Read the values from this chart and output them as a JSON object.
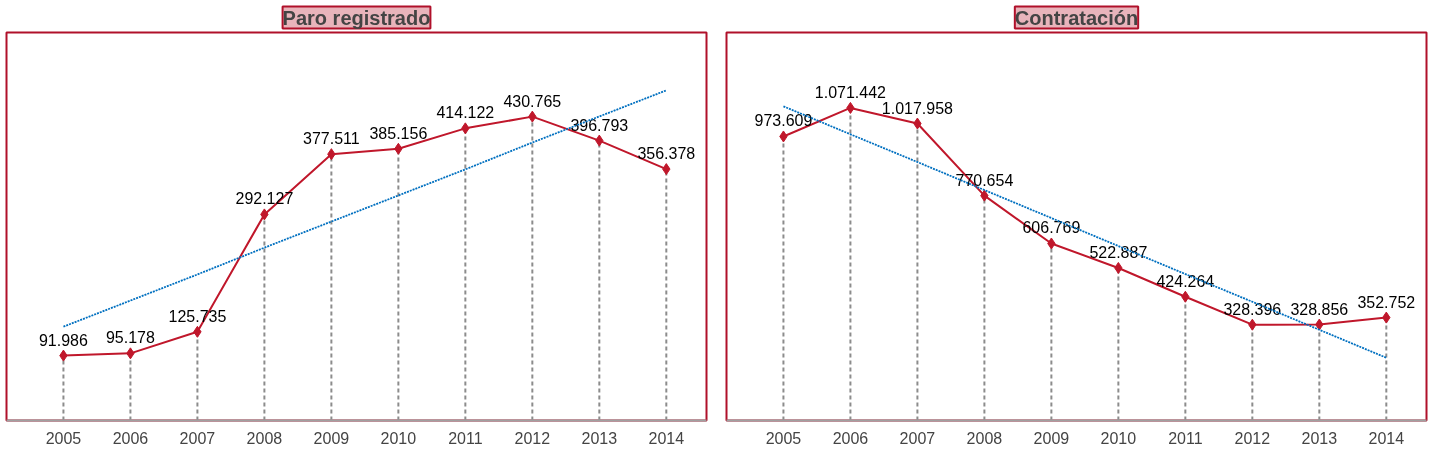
{
  "chart_data": [
    {
      "type": "line",
      "title": "Paro registrado",
      "categories": [
        "2005",
        "2006",
        "2007",
        "2008",
        "2009",
        "2010",
        "2011",
        "2012",
        "2013",
        "2014"
      ],
      "ylim": [
        0,
        550000
      ],
      "grid": "x",
      "tick_labels": "x",
      "series": [
        {
          "color": "#c0172b",
          "marker": "diamond",
          "line_style": "solid",
          "values": [
            91986,
            95178,
            125735,
            292127,
            377511,
            385156,
            414122,
            430765,
            396793,
            356378
          ],
          "value_labels": [
            "91.986",
            "95.178",
            "125.735",
            "292.127",
            "377.511",
            "385.156",
            "414.122",
            "430.765",
            "396.793",
            "356.378"
          ]
        },
        {
          "color": "#0070c0",
          "marker": "none",
          "line_style": "dotted",
          "values": [
            133000,
            170000,
            207000,
            245000,
            282000,
            319000,
            356000,
            394000,
            431000,
            468000
          ]
        }
      ]
    },
    {
      "type": "line",
      "title": "Contratación",
      "categories": [
        "2005",
        "2006",
        "2007",
        "2008",
        "2009",
        "2010",
        "2011",
        "2012",
        "2013",
        "2014"
      ],
      "ylim": [
        0,
        1330000
      ],
      "grid": "x",
      "tick_labels": "x",
      "series": [
        {
          "color": "#c0172b",
          "marker": "diamond",
          "line_style": "solid",
          "values": [
            973609,
            1071442,
            1017958,
            770654,
            606769,
            522887,
            424264,
            328396,
            328856,
            352752
          ],
          "value_labels": [
            "973.609",
            "1.071.442",
            "1.017.958",
            "770.654",
            "606.769",
            "522.887",
            "424.264",
            "328.396",
            "328.856",
            "352.752"
          ]
        },
        {
          "color": "#0070c0",
          "marker": "none",
          "line_style": "dotted",
          "values": [
            1077000,
            981000,
            886000,
            790000,
            694000,
            598000,
            502000,
            407000,
            311000,
            215000
          ]
        }
      ]
    }
  ]
}
